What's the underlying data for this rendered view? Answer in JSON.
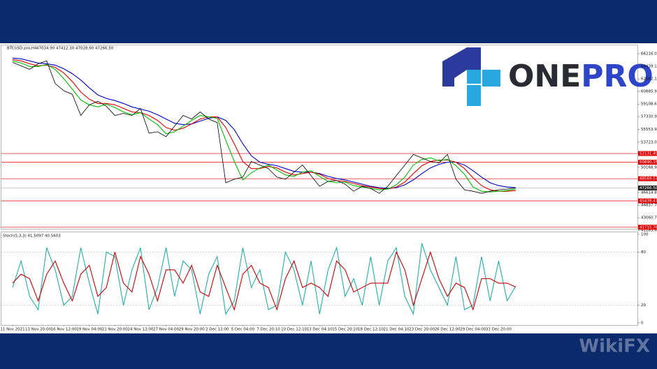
{
  "chart_data": [
    {
      "type": "line",
      "title": "BTCUSD.pro,H4",
      "subtitle": "47034.90 47412.30 47028.60 47266.50",
      "categories": [
        "11 Nov 2021",
        null,
        null,
        "13 Nov 20:00",
        null,
        null,
        "16 Nov 12:00",
        null,
        null,
        "19 Nov 04:00",
        null,
        null,
        "21 Nov 20:00",
        null,
        null,
        "24 Nov 12:00",
        null,
        null,
        "27 Nov 04:00",
        null,
        null,
        "29 Nov 20:00",
        null,
        null,
        "2 Dec 12:00",
        null,
        null,
        "5 Dec 04:00",
        null,
        null,
        "7 Dec 20:10",
        null,
        null,
        "10 Dec 12:10",
        null,
        null,
        "13 Dec 04:10",
        null,
        null,
        "15 Dec 20:10",
        null,
        null,
        "18 Dec 12:10",
        null,
        null,
        "21 Dec 04:10",
        null,
        null,
        "23 Dec 20:00",
        null,
        null,
        "26 Dec 12:00",
        null,
        null,
        "29 Dec 04:00",
        null,
        null,
        "31 Dec 20:00",
        null,
        null
      ],
      "series": [
        {
          "color": "#0000c8",
          "values": [
            65600,
            65500,
            65200,
            64900,
            64800,
            64600,
            64100,
            63400,
            62500,
            61400,
            60400,
            59900,
            59600,
            59200,
            58700,
            58400,
            58100,
            57600,
            57000,
            56400,
            56200,
            56300,
            56700,
            57100,
            57300,
            56800,
            55500,
            53500,
            51800,
            50900,
            50600,
            50400,
            50000,
            49600,
            49500,
            49500,
            49300,
            48900,
            48600,
            48400,
            48100,
            47800,
            47500,
            47300,
            47200,
            47300,
            47700,
            48400,
            49300,
            50100,
            50600,
            50900,
            50900,
            50500,
            49700,
            48800,
            48000,
            47600,
            47400,
            47300
          ]
        },
        {
          "color": "#e00000",
          "values": [
            65400,
            65200,
            64800,
            64500,
            64600,
            64300,
            63500,
            62300,
            60800,
            59800,
            59200,
            59200,
            59000,
            58500,
            58000,
            57900,
            57500,
            56800,
            55800,
            55400,
            55700,
            56300,
            57000,
            57300,
            57300,
            55800,
            53500,
            51000,
            50000,
            50000,
            50300,
            50100,
            49500,
            49100,
            49300,
            49500,
            49200,
            48600,
            48300,
            48200,
            47900,
            47600,
            47400,
            47200,
            47100,
            47400,
            48100,
            49300,
            50400,
            51000,
            51200,
            51200,
            50900,
            50000,
            48700,
            47600,
            47000,
            46800,
            46800,
            46900
          ]
        },
        {
          "color": "#00c000",
          "values": [
            65200,
            64900,
            64400,
            64400,
            64700,
            64000,
            62700,
            61200,
            59700,
            59000,
            58700,
            59100,
            58600,
            58000,
            57600,
            57900,
            57000,
            56200,
            54900,
            55200,
            56000,
            56800,
            57500,
            57300,
            57100,
            54000,
            51000,
            48400,
            49400,
            50100,
            50500,
            49800,
            49100,
            48900,
            49500,
            49700,
            48900,
            48200,
            48000,
            48100,
            47600,
            47400,
            47200,
            47000,
            47100,
            47700,
            48800,
            50500,
            51300,
            51500,
            51100,
            51300,
            50400,
            49200,
            47400,
            46800,
            46700,
            46800,
            46900,
            47100
          ]
        },
        {
          "color": "#000000",
          "values": [
            65000,
            64500,
            64000,
            64800,
            65200,
            62000,
            61000,
            60500,
            57500,
            59000,
            59500,
            58800,
            57500,
            57800,
            57500,
            58500,
            55000,
            55200,
            54500,
            56000,
            57500,
            57000,
            58000,
            57000,
            56500,
            48000,
            48500,
            48800,
            51000,
            50500,
            50000,
            48800,
            48500,
            49500,
            50500,
            49000,
            47500,
            48200,
            48300,
            47800,
            46800,
            47500,
            47200,
            46500,
            47500,
            49000,
            50500,
            52000,
            51500,
            51000,
            50800,
            52000,
            48500,
            47000,
            46800,
            46500,
            46800,
            47000,
            47100,
            47266.5
          ]
        }
      ],
      "ylim": [
        41500,
        67300
      ],
      "yticks": [
        66216.05,
        64439.15,
        {
          "value": 62662.1,
          "label": "62662.10"
        },
        60885.95,
        {
          "value": 59108.6,
          "label": "59108.60"
        },
        57330.95,
        {
          "value": 55553.9,
          "label": "55553.90"
        },
        {
          "value": 53723,
          "label": "53723.00"
        },
        {
          "value": 50168.9,
          "label": "50168.90"
        },
        {
          "value": 46614.8,
          "label": "46614.80"
        },
        44837.75,
        {
          "value": 43060.7,
          "label": "43060.70"
        },
        41283.65
      ],
      "hlines": {
        "color": "#e00000",
        "values": [
          52131.4,
          50890.15,
          48569.57,
          45439.47,
          41715.76
        ],
        "value_labels": [
          "52131.40",
          "50890.15",
          "48569.57",
          "45439.47",
          "41715.76"
        ]
      },
      "last_price": {
        "value": 47266.5,
        "label": "47266.50"
      }
    },
    {
      "type": "line",
      "title": "Stoch(5,3,3) 41.5097 40.5603",
      "series": [
        {
          "color": "#20b0a8",
          "values": [
            40,
            70,
            30,
            15,
            85,
            60,
            20,
            30,
            85,
            45,
            10,
            80,
            75,
            20,
            60,
            85,
            15,
            40,
            85,
            30,
            70,
            60,
            10,
            55,
            75,
            10,
            25,
            85,
            40,
            60,
            15,
            20,
            80,
            60,
            20,
            70,
            10,
            60,
            85,
            30,
            50,
            20,
            75,
            20,
            70,
            85,
            30,
            10,
            90,
            60,
            40,
            20,
            75,
            15,
            20,
            75,
            25,
            70,
            25,
            41.5097
          ]
        },
        {
          "color": "#cc0000",
          "values": [
            45,
            55,
            50,
            25,
            55,
            70,
            45,
            25,
            55,
            65,
            30,
            40,
            80,
            45,
            35,
            75,
            55,
            25,
            60,
            60,
            45,
            65,
            35,
            30,
            65,
            40,
            15,
            55,
            65,
            45,
            40,
            15,
            50,
            70,
            40,
            45,
            40,
            30,
            70,
            60,
            35,
            40,
            45,
            45,
            45,
            80,
            60,
            20,
            50,
            80,
            50,
            30,
            45,
            40,
            15,
            50,
            50,
            45,
            45,
            40.5603
          ]
        }
      ],
      "ylim": [
        0,
        100
      ],
      "yticks": [
        100,
        80,
        20,
        0
      ]
    }
  ],
  "logo": {
    "one": "ONE",
    "pro": "PRO"
  },
  "watermark": "WikiFX"
}
